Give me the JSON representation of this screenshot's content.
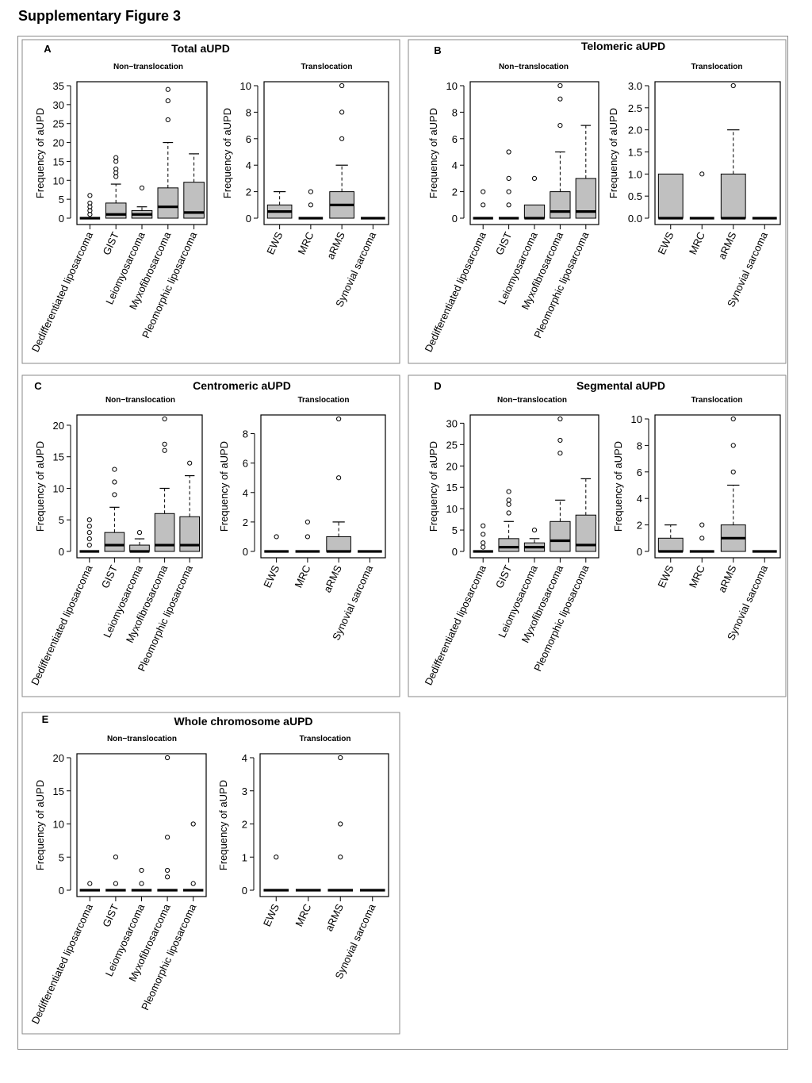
{
  "figure": {
    "title": "Supplementary Figure 3"
  },
  "chart_data": [
    {
      "id": "A",
      "letter": "A",
      "title": "Total aUPD",
      "ylabel": "Frequency of aUPD",
      "subplots": [
        {
          "type": "box",
          "subtitle": "Non−translocation",
          "ylim": [
            0,
            35
          ],
          "yticks": [
            0,
            5,
            10,
            15,
            20,
            25,
            30,
            35
          ],
          "categories": [
            "Dedifferentiated liposarcoma",
            "GIST",
            "Leiomyosarcoma",
            "Myxofibrosarcoma",
            "Pleomorphic liposarcoma"
          ],
          "boxes": [
            {
              "q1": 0,
              "median": 0,
              "q3": 0,
              "whisker_low": 0,
              "whisker_high": 0,
              "outliers": [
                1,
                2,
                3,
                4,
                6
              ]
            },
            {
              "q1": 0,
              "median": 1,
              "q3": 4,
              "whisker_low": 0,
              "whisker_high": 9,
              "outliers": [
                11,
                12,
                13,
                15,
                16
              ]
            },
            {
              "q1": 0,
              "median": 1,
              "q3": 2,
              "whisker_low": 0,
              "whisker_high": 3,
              "outliers": [
                8
              ]
            },
            {
              "q1": 0,
              "median": 3,
              "q3": 8,
              "whisker_low": 0,
              "whisker_high": 20,
              "outliers": [
                26,
                31,
                34
              ]
            },
            {
              "q1": 0,
              "median": 1.5,
              "q3": 9.5,
              "whisker_low": 0,
              "whisker_high": 17,
              "outliers": []
            }
          ]
        },
        {
          "type": "box",
          "subtitle": "Translocation",
          "ylim": [
            0,
            10
          ],
          "yticks": [
            0,
            2,
            4,
            6,
            8,
            10
          ],
          "categories": [
            "EWS",
            "MRC",
            "aRMS",
            "Synovial  sarcoma"
          ],
          "boxes": [
            {
              "q1": 0,
              "median": 0.5,
              "q3": 1,
              "whisker_low": 0,
              "whisker_high": 2,
              "outliers": []
            },
            {
              "q1": 0,
              "median": 0,
              "q3": 0,
              "whisker_low": 0,
              "whisker_high": 0,
              "outliers": [
                1,
                2
              ]
            },
            {
              "q1": 0,
              "median": 1,
              "q3": 2,
              "whisker_low": 0,
              "whisker_high": 4,
              "outliers": [
                6,
                8,
                10
              ]
            },
            {
              "q1": 0,
              "median": 0,
              "q3": 0,
              "whisker_low": 0,
              "whisker_high": 0,
              "outliers": []
            }
          ]
        }
      ]
    },
    {
      "id": "B",
      "letter": "B",
      "title": "Telomeric aUPD",
      "ylabel": "Frequency of aUPD",
      "subplots": [
        {
          "type": "box",
          "subtitle": "Non−translocation",
          "ylim": [
            0,
            10
          ],
          "yticks": [
            0,
            2,
            4,
            6,
            8,
            10
          ],
          "categories": [
            "Dedifferentiated liposarcoma",
            "GIST",
            "Leiomyosarcoma",
            "Myxofibrosarcoma",
            "Pleomorphic liposarcoma"
          ],
          "boxes": [
            {
              "q1": 0,
              "median": 0,
              "q3": 0,
              "whisker_low": 0,
              "whisker_high": 0,
              "outliers": [
                1,
                2
              ]
            },
            {
              "q1": 0,
              "median": 0,
              "q3": 0,
              "whisker_low": 0,
              "whisker_high": 0,
              "outliers": [
                1,
                2,
                3,
                5
              ]
            },
            {
              "q1": 0,
              "median": 0,
              "q3": 1,
              "whisker_low": 0,
              "whisker_high": 1,
              "outliers": [
                3
              ]
            },
            {
              "q1": 0,
              "median": 0.5,
              "q3": 2,
              "whisker_low": 0,
              "whisker_high": 5,
              "outliers": [
                7,
                9,
                10
              ]
            },
            {
              "q1": 0,
              "median": 0.5,
              "q3": 3,
              "whisker_low": 0,
              "whisker_high": 7,
              "outliers": []
            }
          ]
        },
        {
          "type": "box",
          "subtitle": "Translocation",
          "ylim": [
            0,
            3
          ],
          "yticks": [
            0,
            0.5,
            1,
            1.5,
            2,
            2.5,
            3
          ],
          "ytick_labels": [
            "0.0",
            "0.5",
            "1.0",
            "1.5",
            "2.0",
            "2.5",
            "3.0"
          ],
          "categories": [
            "EWS",
            "MRC",
            "aRMS",
            "Synovial  sarcoma"
          ],
          "boxes": [
            {
              "q1": 0,
              "median": 0,
              "q3": 1,
              "whisker_low": 0,
              "whisker_high": 1,
              "outliers": []
            },
            {
              "q1": 0,
              "median": 0,
              "q3": 0,
              "whisker_low": 0,
              "whisker_high": 0,
              "outliers": [
                1
              ]
            },
            {
              "q1": 0,
              "median": 0,
              "q3": 1,
              "whisker_low": 0,
              "whisker_high": 2,
              "outliers": [
                3
              ]
            },
            {
              "q1": 0,
              "median": 0,
              "q3": 0,
              "whisker_low": 0,
              "whisker_high": 0,
              "outliers": []
            }
          ]
        }
      ]
    },
    {
      "id": "C",
      "letter": "C",
      "title": "Centromeric aUPD",
      "ylabel": "Frequency of aUPD",
      "subplots": [
        {
          "type": "box",
          "subtitle": "Non−translocation",
          "ylim": [
            0,
            21
          ],
          "yticks": [
            0,
            5,
            10,
            15,
            20
          ],
          "categories": [
            "Dedifferentiated liposarcoma",
            "GIST",
            "Leiomyosarcoma",
            "Myxofibrosarcoma",
            "Pleomorphic liposarcoma"
          ],
          "boxes": [
            {
              "q1": 0,
              "median": 0,
              "q3": 0,
              "whisker_low": 0,
              "whisker_high": 0,
              "outliers": [
                1,
                2,
                3,
                4,
                5
              ]
            },
            {
              "q1": 0,
              "median": 1,
              "q3": 3,
              "whisker_low": 0,
              "whisker_high": 7,
              "outliers": [
                9,
                11,
                13
              ]
            },
            {
              "q1": 0,
              "median": 0,
              "q3": 1,
              "whisker_low": 0,
              "whisker_high": 2,
              "outliers": [
                3
              ]
            },
            {
              "q1": 0,
              "median": 1,
              "q3": 6,
              "whisker_low": 0,
              "whisker_high": 10,
              "outliers": [
                16,
                17,
                21
              ]
            },
            {
              "q1": 0,
              "median": 1,
              "q3": 5.5,
              "whisker_low": 0,
              "whisker_high": 12,
              "outliers": [
                14
              ]
            }
          ]
        },
        {
          "type": "box",
          "subtitle": "Translocation",
          "ylim": [
            0,
            9
          ],
          "yticks": [
            0,
            2,
            4,
            6,
            8
          ],
          "categories": [
            "EWS",
            "MRC",
            "aRMS",
            "Synovial  sarcoma"
          ],
          "boxes": [
            {
              "q1": 0,
              "median": 0,
              "q3": 0,
              "whisker_low": 0,
              "whisker_high": 0,
              "outliers": [
                1
              ]
            },
            {
              "q1": 0,
              "median": 0,
              "q3": 0,
              "whisker_low": 0,
              "whisker_high": 0,
              "outliers": [
                1,
                2
              ]
            },
            {
              "q1": 0,
              "median": 0,
              "q3": 1,
              "whisker_low": 0,
              "whisker_high": 2,
              "outliers": [
                5,
                9
              ]
            },
            {
              "q1": 0,
              "median": 0,
              "q3": 0,
              "whisker_low": 0,
              "whisker_high": 0,
              "outliers": []
            }
          ]
        }
      ]
    },
    {
      "id": "D",
      "letter": "D",
      "title": "Segmental aUPD",
      "ylabel": "Frequency of aUPD",
      "subplots": [
        {
          "type": "box",
          "subtitle": "Non−translocation",
          "ylim": [
            0,
            31
          ],
          "yticks": [
            0,
            5,
            10,
            15,
            20,
            25,
            30
          ],
          "categories": [
            "Dedifferentiated liposarcoma",
            "GIST",
            "Leiomyosarcoma",
            "Myxofibrosarcoma",
            "Pleomorphic liposarcoma"
          ],
          "boxes": [
            {
              "q1": 0,
              "median": 0,
              "q3": 0,
              "whisker_low": 0,
              "whisker_high": 0,
              "outliers": [
                1,
                2,
                4,
                6
              ]
            },
            {
              "q1": 0,
              "median": 1,
              "q3": 3,
              "whisker_low": 0,
              "whisker_high": 7,
              "outliers": [
                9,
                11,
                12,
                14
              ]
            },
            {
              "q1": 0,
              "median": 1,
              "q3": 2,
              "whisker_low": 0,
              "whisker_high": 3,
              "outliers": [
                5
              ]
            },
            {
              "q1": 0,
              "median": 2.5,
              "q3": 7,
              "whisker_low": 0,
              "whisker_high": 12,
              "outliers": [
                23,
                26,
                31
              ]
            },
            {
              "q1": 0,
              "median": 1.5,
              "q3": 8.5,
              "whisker_low": 0,
              "whisker_high": 17,
              "outliers": []
            }
          ]
        },
        {
          "type": "box",
          "subtitle": "Translocation",
          "ylim": [
            0,
            10
          ],
          "yticks": [
            0,
            2,
            4,
            6,
            8,
            10
          ],
          "categories": [
            "EWS",
            "MRC",
            "aRMS",
            "Synovial  sarcoma"
          ],
          "boxes": [
            {
              "q1": 0,
              "median": 0,
              "q3": 1,
              "whisker_low": 0,
              "whisker_high": 2,
              "outliers": []
            },
            {
              "q1": 0,
              "median": 0,
              "q3": 0,
              "whisker_low": 0,
              "whisker_high": 0,
              "outliers": [
                1,
                2
              ]
            },
            {
              "q1": 0,
              "median": 1,
              "q3": 2,
              "whisker_low": 0,
              "whisker_high": 5,
              "outliers": [
                6,
                8,
                10
              ]
            },
            {
              "q1": 0,
              "median": 0,
              "q3": 0,
              "whisker_low": 0,
              "whisker_high": 0,
              "outliers": []
            }
          ]
        }
      ]
    },
    {
      "id": "E",
      "letter": "E",
      "title": "Whole chromosome aUPD",
      "ylabel": "Frequency of aUPD",
      "subplots": [
        {
          "type": "box",
          "subtitle": "Non−translocation",
          "ylim": [
            0,
            20
          ],
          "yticks": [
            0,
            5,
            10,
            15,
            20
          ],
          "categories": [
            "Dedifferentiated liposarcoma",
            "GIST",
            "Leiomyosarcoma",
            "Myxofibrosarcoma",
            "Pleomorphic liposarcoma"
          ],
          "boxes": [
            {
              "q1": 0,
              "median": 0,
              "q3": 0,
              "whisker_low": 0,
              "whisker_high": 0,
              "outliers": [
                1
              ]
            },
            {
              "q1": 0,
              "median": 0,
              "q3": 0,
              "whisker_low": 0,
              "whisker_high": 0,
              "outliers": [
                1,
                5
              ]
            },
            {
              "q1": 0,
              "median": 0,
              "q3": 0,
              "whisker_low": 0,
              "whisker_high": 0,
              "outliers": [
                1,
                3
              ]
            },
            {
              "q1": 0,
              "median": 0,
              "q3": 0,
              "whisker_low": 0,
              "whisker_high": 0,
              "outliers": [
                2,
                3,
                8,
                20
              ]
            },
            {
              "q1": 0,
              "median": 0,
              "q3": 0,
              "whisker_low": 0,
              "whisker_high": 0,
              "outliers": [
                1,
                10
              ]
            }
          ]
        },
        {
          "type": "box",
          "subtitle": "Translocation",
          "ylim": [
            0,
            4
          ],
          "yticks": [
            0,
            1,
            2,
            3,
            4
          ],
          "categories": [
            "EWS",
            "MRC",
            "aRMS",
            "Synovial  sarcoma"
          ],
          "boxes": [
            {
              "q1": 0,
              "median": 0,
              "q3": 0,
              "whisker_low": 0,
              "whisker_high": 0,
              "outliers": [
                1
              ]
            },
            {
              "q1": 0,
              "median": 0,
              "q3": 0,
              "whisker_low": 0,
              "whisker_high": 0,
              "outliers": []
            },
            {
              "q1": 0,
              "median": 0,
              "q3": 0,
              "whisker_low": 0,
              "whisker_high": 0,
              "outliers": [
                1,
                2,
                4
              ]
            },
            {
              "q1": 0,
              "median": 0,
              "q3": 0,
              "whisker_low": 0,
              "whisker_high": 0,
              "outliers": []
            }
          ]
        }
      ]
    }
  ]
}
